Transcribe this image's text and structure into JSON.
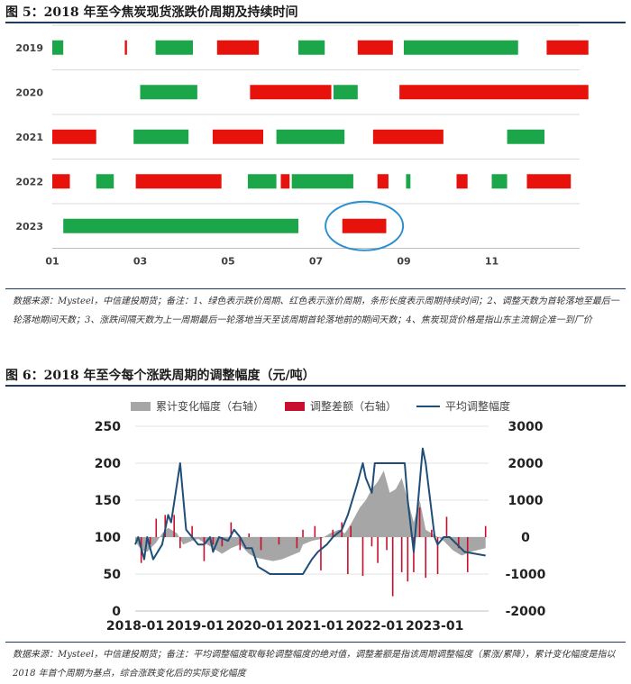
{
  "figures": [
    {
      "title": "图 5：2018 年至今焦炭现货涨跌价周期及持续时间",
      "note": "数据来源：Mysteel，中信建投期货；备注：1、绿色表示跌价周期、红色表示涨价周期，条形长度表示周期持续时间；2、调整天数为首轮落地至最后一轮落地期间天数；3、涨跌间隔天数为上一周期最后一轮落地当天至该周期首轮落地前的期间天数；4、焦炭现货价格是指山东主流钢企准一到厂价"
    },
    {
      "title": "图 6：2018 年至今每个涨跌周期的调整幅度（元/吨）",
      "note": "数据来源：Mysteel，中信建投期货；备注：平均调整幅度取每轮调整幅度的绝对值，调整差额是指该周期调整幅度（累涨/累降），累计变化幅度是指以 2018 年首个周期为基点，综合涨跌变化后的实际变化幅度"
    }
  ],
  "colors": {
    "green": "#1ca64a",
    "red": "#e8120c",
    "gray": "#a6a6a6",
    "navy": "#1f4e79",
    "bar": "#c8102e",
    "circle": "#2e8fd0"
  },
  "chart_data": [
    {
      "type": "bar",
      "orientation": "horizontal-timeline",
      "categories": [
        "2019",
        "2020",
        "2021",
        "2022",
        "2023"
      ],
      "x_ticks": [
        "01",
        "03",
        "05",
        "07",
        "09",
        "11"
      ],
      "xlim_month": [
        1,
        13
      ],
      "legend": "none",
      "grid": "horizontal",
      "annotation": "circle around 2023 rise period",
      "periods": {
        "2019": [
          {
            "kind": "fall",
            "start": 1.0,
            "end": 1.25
          },
          {
            "kind": "rise",
            "start": 2.65,
            "end": 2.7
          },
          {
            "kind": "fall",
            "start": 3.35,
            "end": 4.2
          },
          {
            "kind": "rise",
            "start": 4.75,
            "end": 5.7
          },
          {
            "kind": "fall",
            "start": 6.6,
            "end": 7.2
          },
          {
            "kind": "rise",
            "start": 7.95,
            "end": 8.75
          },
          {
            "kind": "fall",
            "start": 9.0,
            "end": 11.6
          },
          {
            "kind": "rise",
            "start": 12.25,
            "end": 13.2
          }
        ],
        "2020": [
          {
            "kind": "fall",
            "start": 3.0,
            "end": 4.3
          },
          {
            "kind": "rise",
            "start": 5.5,
            "end": 7.35
          },
          {
            "kind": "fall",
            "start": 7.4,
            "end": 7.95
          },
          {
            "kind": "rise",
            "start": 8.9,
            "end": 13.2
          }
        ],
        "2021": [
          {
            "kind": "rise",
            "start": 1.0,
            "end": 2.0
          },
          {
            "kind": "fall",
            "start": 2.85,
            "end": 4.1
          },
          {
            "kind": "rise",
            "start": 4.65,
            "end": 5.8
          },
          {
            "kind": "fall",
            "start": 6.1,
            "end": 7.65
          },
          {
            "kind": "rise",
            "start": 8.3,
            "end": 9.9
          },
          {
            "kind": "fall",
            "start": 11.35,
            "end": 12.2
          }
        ],
        "2022": [
          {
            "kind": "rise",
            "start": 1.0,
            "end": 1.4
          },
          {
            "kind": "fall",
            "start": 2.0,
            "end": 2.4
          },
          {
            "kind": "rise",
            "start": 2.9,
            "end": 4.85
          },
          {
            "kind": "fall",
            "start": 5.45,
            "end": 6.1
          },
          {
            "kind": "rise",
            "start": 6.2,
            "end": 6.4
          },
          {
            "kind": "fall",
            "start": 6.45,
            "end": 7.85
          },
          {
            "kind": "rise",
            "start": 8.4,
            "end": 8.65
          },
          {
            "kind": "fall",
            "start": 9.05,
            "end": 9.15
          },
          {
            "kind": "rise",
            "start": 10.2,
            "end": 10.45
          },
          {
            "kind": "fall",
            "start": 11.0,
            "end": 11.35
          },
          {
            "kind": "rise",
            "start": 11.8,
            "end": 12.8
          }
        ],
        "2023": [
          {
            "kind": "fall",
            "start": 1.25,
            "end": 6.6
          },
          {
            "kind": "rise",
            "start": 7.6,
            "end": 8.6
          }
        ]
      }
    },
    {
      "type": "line",
      "legend": "top",
      "grid": "horizontal",
      "x_ticks": [
        "2018-01",
        "2019-01",
        "2020-01",
        "2021-01",
        "2022-01",
        "2023-01"
      ],
      "xlim": [
        2018.0,
        2023.9
      ],
      "ylim_left": [
        0,
        250
      ],
      "ylim_right": [
        -2000,
        3000
      ],
      "left_ticks": [
        0,
        50,
        100,
        150,
        200,
        250
      ],
      "right_ticks": [
        -2000,
        -1000,
        0,
        1000,
        2000,
        3000
      ],
      "series": [
        {
          "name": "累计变化幅度（右轴）",
          "style": "area",
          "axis": "right",
          "x": [
            2018.0,
            2018.1,
            2018.2,
            2018.35,
            2018.45,
            2018.55,
            2018.7,
            2018.8,
            2018.95,
            2019.05,
            2019.15,
            2019.3,
            2019.45,
            2019.6,
            2019.75,
            2019.9,
            2020.0,
            2020.15,
            2020.3,
            2020.45,
            2020.6,
            2020.75,
            2020.8,
            2020.95,
            2021.1,
            2021.25,
            2021.4,
            2021.5,
            2021.6,
            2021.75,
            2021.85,
            2021.95,
            2022.05,
            2022.15,
            2022.25,
            2022.35,
            2022.45,
            2022.55,
            2022.65,
            2022.75,
            2022.85,
            2022.95,
            2023.05,
            2023.15,
            2023.3,
            2023.45,
            2023.6,
            2023.85
          ],
          "values": [
            -100,
            -350,
            -400,
            -150,
            100,
            250,
            100,
            -200,
            -100,
            -50,
            -150,
            -300,
            -450,
            -300,
            -200,
            -450,
            -550,
            -600,
            -650,
            -600,
            -500,
            -400,
            -200,
            -100,
            -50,
            100,
            200,
            100,
            350,
            800,
            1000,
            1300,
            1500,
            1800,
            1200,
            1300,
            1600,
            1000,
            400,
            1000,
            200,
            100,
            0,
            -100,
            -350,
            -500,
            -400,
            -300
          ]
        },
        {
          "name": "调整差额（右轴）",
          "style": "bar",
          "axis": "right",
          "x": [
            2018.1,
            2018.25,
            2018.35,
            2018.5,
            2018.65,
            2018.75,
            2018.95,
            2019.15,
            2019.3,
            2019.45,
            2019.6,
            2019.75,
            2019.9,
            2020.1,
            2020.4,
            2020.7,
            2020.8,
            2021.0,
            2021.1,
            2021.3,
            2021.45,
            2021.55,
            2021.6,
            2021.8,
            2021.95,
            2022.05,
            2022.2,
            2022.3,
            2022.45,
            2022.55,
            2022.65,
            2022.75,
            2022.85,
            2022.95,
            2023.05,
            2023.2,
            2023.4,
            2023.55,
            2023.85
          ],
          "values": [
            -700,
            -200,
            500,
            600,
            600,
            -300,
            300,
            -650,
            -200,
            -250,
            400,
            -350,
            100,
            -350,
            -200,
            -300,
            200,
            300,
            -900,
            200,
            400,
            -1000,
            300,
            -1050,
            -250,
            -700,
            -350,
            -1600,
            -950,
            -1200,
            -950,
            800,
            -1100,
            200,
            -1000,
            550,
            -300,
            -950,
            300
          ]
        },
        {
          "name": "平均调整幅度",
          "style": "line",
          "axis": "left",
          "x": [
            2018.0,
            2018.05,
            2018.15,
            2018.2,
            2018.3,
            2018.45,
            2018.55,
            2018.6,
            2018.75,
            2018.85,
            2018.95,
            2019.05,
            2019.15,
            2019.25,
            2019.3,
            2019.4,
            2019.55,
            2019.65,
            2019.75,
            2019.85,
            2019.95,
            2020.05,
            2020.15,
            2020.25,
            2020.45,
            2020.65,
            2020.8,
            2020.95,
            2021.05,
            2021.2,
            2021.3,
            2021.45,
            2021.55,
            2021.7,
            2021.8,
            2021.85,
            2021.95,
            2022.0,
            2022.05,
            2022.15,
            2022.3,
            2022.4,
            2022.5,
            2022.55,
            2022.65,
            2022.8,
            2022.85,
            2023.0,
            2023.05,
            2023.15,
            2023.25,
            2023.5,
            2023.85
          ],
          "values": [
            90,
            100,
            70,
            100,
            70,
            90,
            130,
            120,
            200,
            110,
            100,
            90,
            90,
            100,
            80,
            100,
            95,
            110,
            100,
            85,
            85,
            60,
            55,
            50,
            50,
            50,
            50,
            70,
            80,
            90,
            100,
            110,
            130,
            170,
            200,
            180,
            160,
            200,
            200,
            200,
            200,
            200,
            200,
            150,
            80,
            220,
            200,
            100,
            90,
            100,
            100,
            80,
            75
          ]
        }
      ]
    }
  ]
}
